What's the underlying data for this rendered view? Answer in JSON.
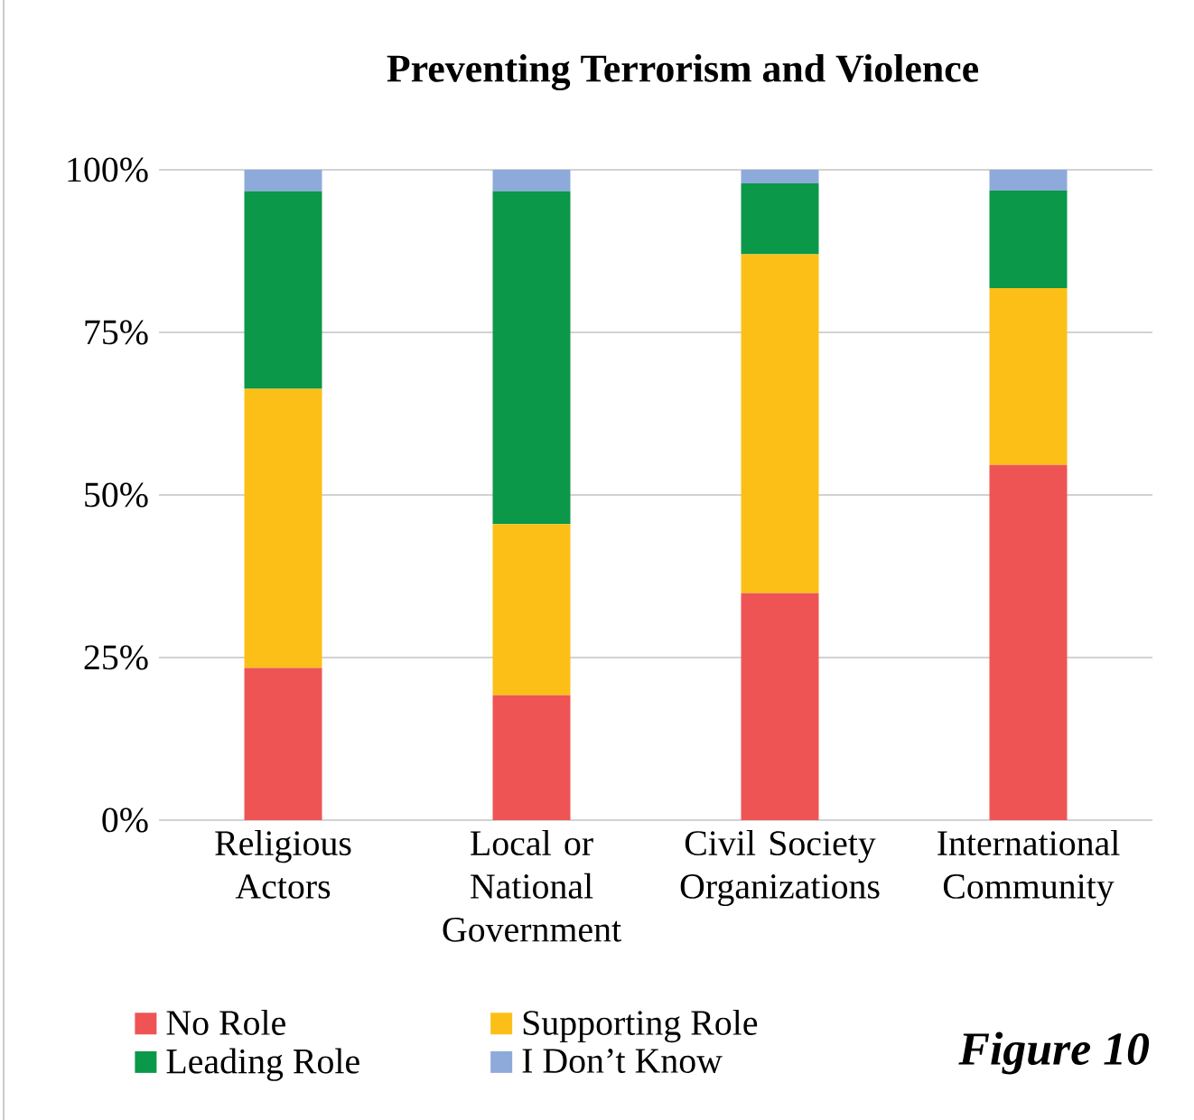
{
  "chart_data": {
    "type": "bar",
    "stacked": true,
    "title": "Preventing Terrorism and Violence",
    "categories": [
      "Religious Actors",
      "Local or National Government",
      "Civil Society Organizations",
      "International Community"
    ],
    "series": [
      {
        "name": "No Role",
        "color": "#ef5455",
        "values": [
          23.4,
          19.2,
          34.9,
          54.6
        ]
      },
      {
        "name": "Supporting Role",
        "color": "#fcbf17",
        "values": [
          42.9,
          26.3,
          52.1,
          27.2
        ]
      },
      {
        "name": "Leading Role",
        "color": "#0b9849",
        "values": [
          30.4,
          51.2,
          10.9,
          15.0
        ]
      },
      {
        "name": "I Don’t Know",
        "color": "#8eaadb",
        "values": [
          3.3,
          3.3,
          2.1,
          3.2
        ]
      }
    ],
    "ylim": [
      0,
      100
    ],
    "yticks": [
      {
        "value": 0,
        "label": "0%"
      },
      {
        "value": 25,
        "label": "25%"
      },
      {
        "value": 50,
        "label": "50%"
      },
      {
        "value": 75,
        "label": "75%"
      },
      {
        "value": 100,
        "label": "100%"
      }
    ],
    "grid": "y",
    "legend": "bottom",
    "annotations": [
      "Figure 10"
    ]
  }
}
